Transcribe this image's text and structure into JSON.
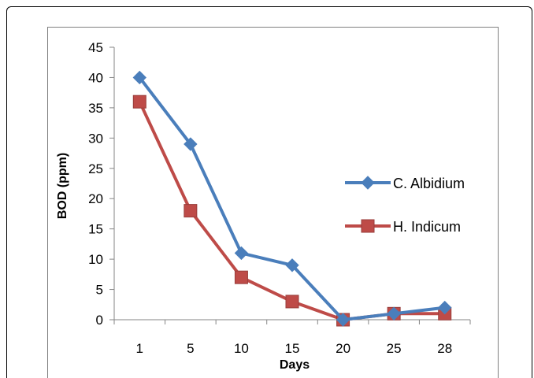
{
  "chart_data": {
    "type": "line",
    "title": "",
    "xlabel": "Days",
    "ylabel": "BOD (ppm)",
    "categories": [
      "1",
      "5",
      "10",
      "15",
      "20",
      "25",
      "28"
    ],
    "ylim": [
      0,
      45
    ],
    "yticks": [
      "0",
      "5",
      "10",
      "15",
      "20",
      "25",
      "30",
      "35",
      "40",
      "45"
    ],
    "grid": false,
    "legend_position": "right",
    "series": [
      {
        "name": "C. Albidium",
        "marker": "diamond",
        "color": "#4a7ebb",
        "values": [
          40,
          29,
          11,
          9,
          0,
          1,
          2
        ]
      },
      {
        "name": "H. Indicum",
        "marker": "square",
        "color": "#be4b48",
        "values": [
          36,
          18,
          7,
          3,
          0,
          1,
          1
        ]
      }
    ]
  }
}
